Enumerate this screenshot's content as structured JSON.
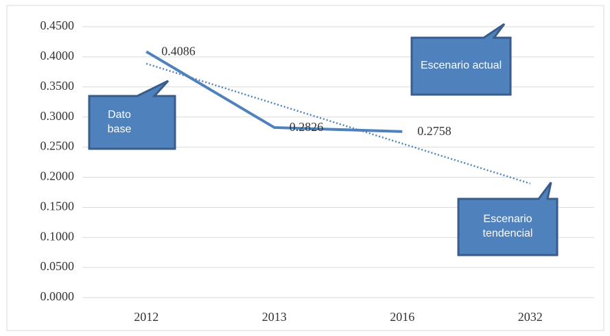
{
  "chart_data": {
    "type": "line",
    "categories": [
      "2012",
      "2013",
      "2016",
      "2032"
    ],
    "series": [
      {
        "name": null,
        "color": "#4f81bd",
        "style": "solid",
        "values": [
          0.4086,
          0.2826,
          0.2758,
          null
        ]
      },
      {
        "name": null,
        "color": "#4f81bd",
        "style": "dotted",
        "values": [
          0.3887,
          0.3223,
          0.2559,
          0.1895
        ]
      }
    ],
    "value_labels_series": 0,
    "ylim": [
      0,
      0.45
    ],
    "yticks": [
      {
        "value": 0,
        "label": "0.0000"
      },
      {
        "value": 0.05,
        "label": "0.0500"
      },
      {
        "value": 0.1,
        "label": "0.1000"
      },
      {
        "value": 0.15,
        "label": "0.1500"
      },
      {
        "value": 0.2,
        "label": "0.2000"
      },
      {
        "value": 0.25,
        "label": "0.2500"
      },
      {
        "value": 0.3,
        "label": "0.3000"
      },
      {
        "value": 0.35,
        "label": "0.3500"
      },
      {
        "value": 0.4,
        "label": "0.4000"
      },
      {
        "value": 0.45,
        "label": "0.4500"
      }
    ],
    "grid": true,
    "annotations": [
      "Dato base",
      "Escenario actual",
      "Escenario tendencial"
    ]
  }
}
